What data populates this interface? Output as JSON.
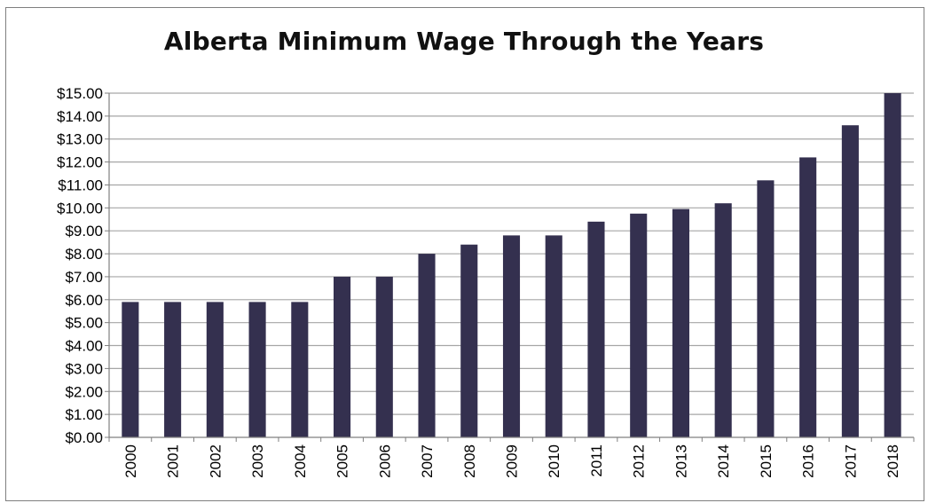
{
  "chart_data": {
    "type": "bar",
    "title": "Alberta Minimum Wage Through the Years",
    "xlabel": "",
    "ylabel": "",
    "categories": [
      "2000",
      "2001",
      "2002",
      "2003",
      "2004",
      "2005",
      "2006",
      "2007",
      "2008",
      "2009",
      "2010",
      "2011",
      "2012",
      "2013",
      "2014",
      "2015",
      "2016",
      "2017",
      "2018"
    ],
    "values": [
      5.9,
      5.9,
      5.9,
      5.9,
      5.9,
      7.0,
      7.0,
      8.0,
      8.4,
      8.8,
      8.8,
      9.4,
      9.75,
      9.95,
      10.2,
      11.2,
      12.2,
      13.6,
      15.0
    ],
    "ylim": [
      0,
      15
    ],
    "ytick_step": 1,
    "ytick_labels": [
      "$0.00",
      "$1.00",
      "$2.00",
      "$3.00",
      "$4.00",
      "$5.00",
      "$6.00",
      "$7.00",
      "$8.00",
      "$9.00",
      "$10.00",
      "$11.00",
      "$12.00",
      "$13.00",
      "$14.00",
      "$15.00"
    ],
    "grid": true,
    "legend": false,
    "bar_color": "#34304f",
    "grid_color": "#a6a6a6"
  }
}
